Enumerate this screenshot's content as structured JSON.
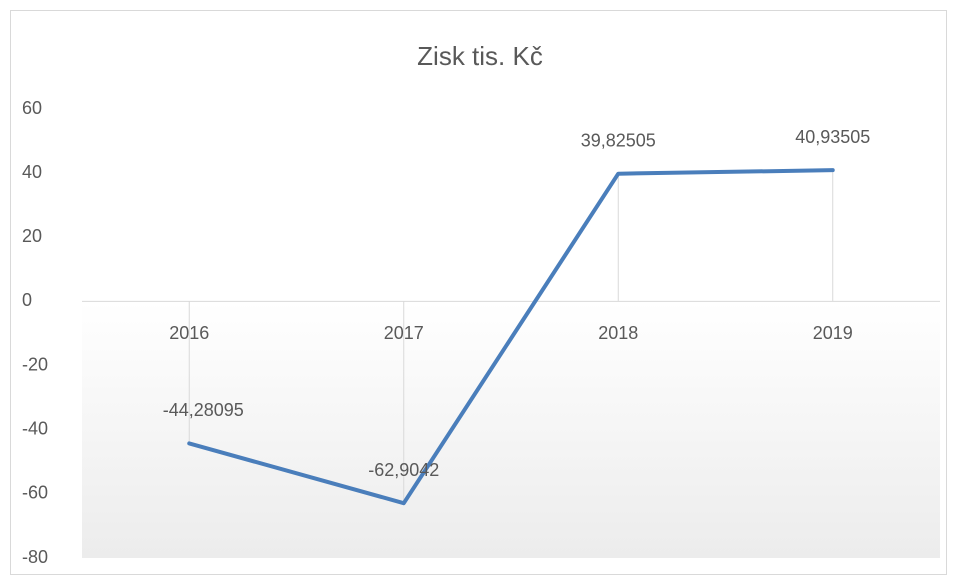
{
  "chart_data": {
    "type": "line",
    "title": "Zisk tis. Kč",
    "categories": [
      "2016",
      "2017",
      "2018",
      "2019"
    ],
    "series": [
      {
        "name": "Zisk tis. Kč",
        "color": "#4a7ebb",
        "values": [
          -44.28095,
          -62.9042,
          39.82505,
          40.93505
        ],
        "value_labels": [
          "-44,28095",
          "-62,9042",
          "39,82505",
          "40,93505"
        ]
      }
    ],
    "ylim": [
      -80,
      60
    ],
    "yticks": [
      -80,
      -60,
      -40,
      -20,
      0,
      20,
      40,
      60
    ],
    "grid": false,
    "drop_lines": true
  }
}
